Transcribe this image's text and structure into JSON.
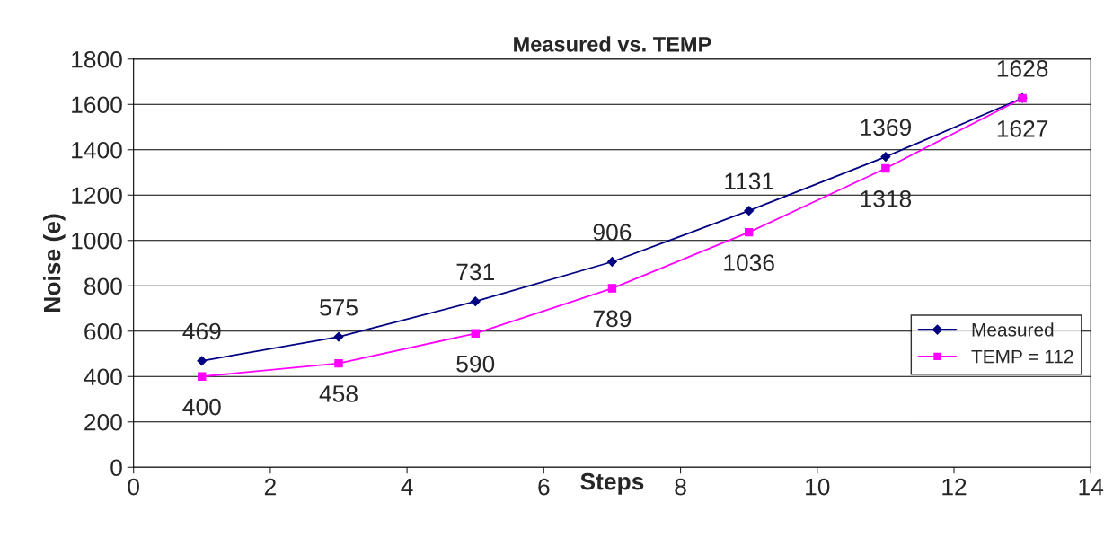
{
  "chart_data": {
    "type": "line",
    "title": "Measured vs. TEMP",
    "xlabel": "Steps",
    "ylabel": "Noise (e)",
    "x": [
      1,
      3,
      5,
      7,
      9,
      11,
      13
    ],
    "series": [
      {
        "name": "Measured",
        "color": "#000080",
        "marker": "diamond",
        "values": [
          469,
          575,
          731,
          906,
          1131,
          1369,
          1628
        ]
      },
      {
        "name": "TEMP = 112",
        "color": "#ff00ff",
        "marker": "square",
        "values": [
          400,
          458,
          590,
          789,
          1036,
          1318,
          1627
        ]
      }
    ],
    "xlim": [
      0,
      14
    ],
    "xticks": [
      0,
      2,
      4,
      6,
      8,
      10,
      12,
      14
    ],
    "ylim": [
      0,
      1800
    ],
    "yticks": [
      0,
      200,
      400,
      600,
      800,
      1000,
      1200,
      1400,
      1600,
      1800
    ],
    "grid": "y",
    "legend": "right",
    "data_labels": true,
    "line_style": "solid"
  }
}
